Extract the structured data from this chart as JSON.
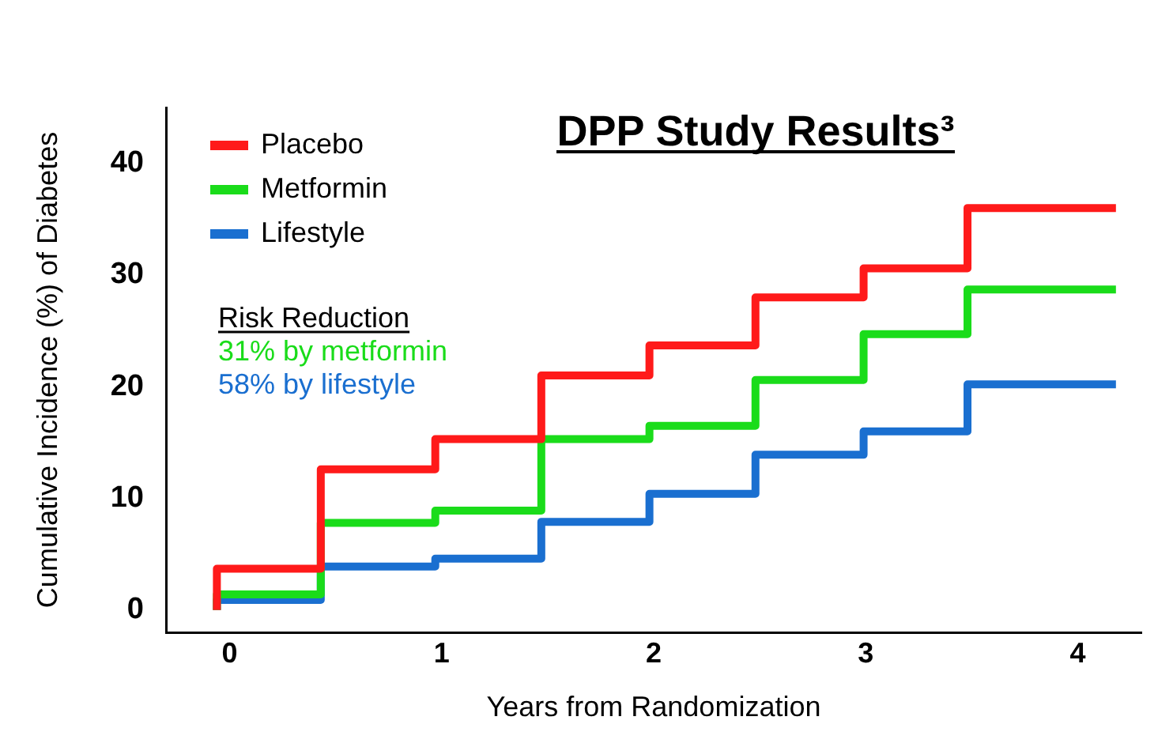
{
  "chart_data": {
    "type": "step",
    "title": "DPP Study Results³",
    "xlabel": "Years from Randomization",
    "ylabel": "Cumulative Incidence (%) of Diabetes",
    "xlim": [
      -0.3,
      4.3
    ],
    "xticks": [
      0,
      1,
      2,
      3,
      4
    ],
    "ylim": [
      -2,
      45
    ],
    "yticks": [
      0,
      10,
      20,
      30,
      40
    ],
    "grid": false,
    "legend": "top left",
    "annotations": [
      "Risk Reduction",
      "31% by metformin",
      "58% by lifestyle"
    ],
    "series": [
      {
        "name": "Placebo",
        "color": "#ff1a1a",
        "x": [
          -0.06,
          0.43,
          0.97,
          1.47,
          1.98,
          2.48,
          2.99,
          3.48,
          3.99,
          4.18
        ],
        "values": [
          0,
          3.7,
          12.6,
          15.3,
          21,
          23.7,
          28,
          30.6,
          36,
          36
        ]
      },
      {
        "name": "Metformin",
        "color": "#1adc1a",
        "x": [
          -0.06,
          0.43,
          0.97,
          1.47,
          1.98,
          2.48,
          2.99,
          3.48,
          3.99,
          4.18
        ],
        "values": [
          0,
          1.4,
          7.8,
          8.9,
          15.3,
          16.5,
          20.6,
          24.7,
          28.7,
          28.7
        ]
      },
      {
        "name": "Lifestyle",
        "color": "#1a6fd0",
        "x": [
          -0.06,
          0.43,
          0.97,
          1.47,
          1.98,
          2.48,
          2.99,
          3.48,
          3.99,
          4.18
        ],
        "values": [
          0,
          0.9,
          3.9,
          4.6,
          7.9,
          10.4,
          13.9,
          16,
          20.2,
          20.2
        ]
      }
    ]
  }
}
